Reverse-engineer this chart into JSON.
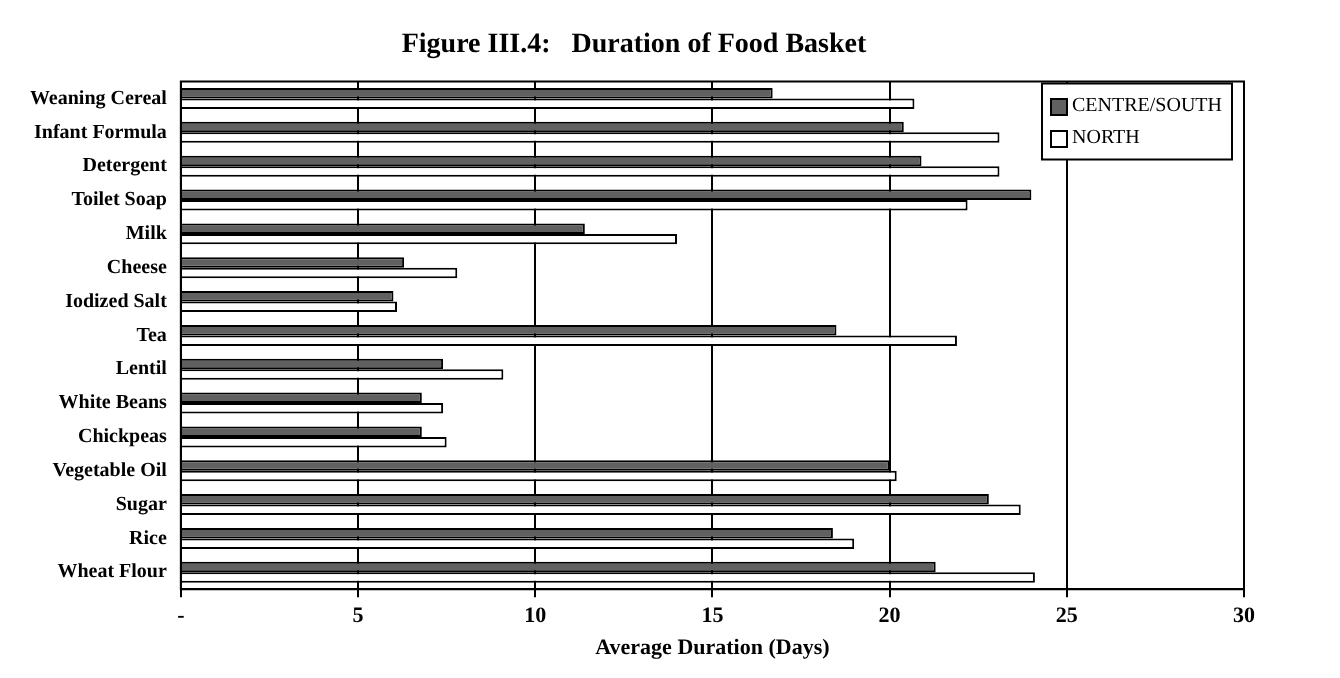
{
  "chart_data": {
    "type": "bar",
    "orientation": "horizontal",
    "title": "Figure III.4:   Duration of Food Basket",
    "xlabel": "Average Duration (Days)",
    "categories": [
      "Weaning Cereal",
      "Infant Formula",
      "Detergent",
      "Toilet Soap",
      "Milk",
      "Cheese",
      "Iodized Salt",
      "Tea",
      "Lentil",
      "White Beans",
      "Chickpeas",
      "Vegetable Oil",
      "Sugar",
      "Rice",
      "Wheat Flour"
    ],
    "series": [
      {
        "name": "CENTRE/SOUTH",
        "color": "#606060",
        "values": [
          16.7,
          20.4,
          20.9,
          24.0,
          11.4,
          6.3,
          6.0,
          18.5,
          7.4,
          6.8,
          6.8,
          20.0,
          22.8,
          18.4,
          21.3
        ]
      },
      {
        "name": "NORTH",
        "color": "#ffffff",
        "values": [
          20.7,
          23.1,
          23.1,
          22.2,
          14.0,
          7.8,
          6.1,
          21.9,
          9.1,
          7.4,
          7.5,
          20.2,
          23.7,
          19.0,
          24.1
        ]
      }
    ],
    "xlim": [
      0,
      30
    ],
    "xticks": [
      {
        "value": 0,
        "label": "-"
      },
      5,
      10,
      15,
      20,
      25,
      30
    ],
    "grid": "x",
    "legend": "top right"
  }
}
